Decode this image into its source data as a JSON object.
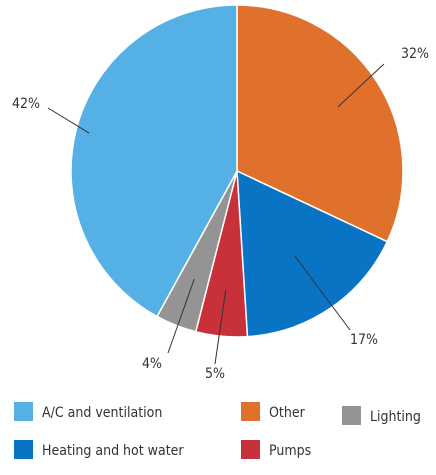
{
  "chart_data": {
    "type": "pie",
    "title": "",
    "slices": [
      {
        "name": "Other",
        "value": 32,
        "label": "32%",
        "color": "#E0712C"
      },
      {
        "name": "Heating and hot water",
        "value": 17,
        "label": "17%",
        "color": "#0A74C4"
      },
      {
        "name": "Pumps",
        "value": 5,
        "label": "5%",
        "color": "#C8303A"
      },
      {
        "name": "Lighting",
        "value": 4,
        "label": "4%",
        "color": "#949494"
      },
      {
        "name": "A/C and ventilation",
        "value": 42,
        "label": "42%",
        "color": "#55B0E6"
      }
    ],
    "start_angle": "12 o'clock",
    "direction": "clockwise",
    "legend_position": "bottom"
  },
  "legend": {
    "items": [
      {
        "label": "A/C and ventilation",
        "color": "#55B0E6"
      },
      {
        "label": "Other",
        "color": "#E0712C"
      },
      {
        "label": "Lighting",
        "color": "#949494"
      },
      {
        "label": "Heating and hot water",
        "color": "#0A74C4"
      },
      {
        "label": "Pumps",
        "color": "#C8303A"
      }
    ]
  }
}
